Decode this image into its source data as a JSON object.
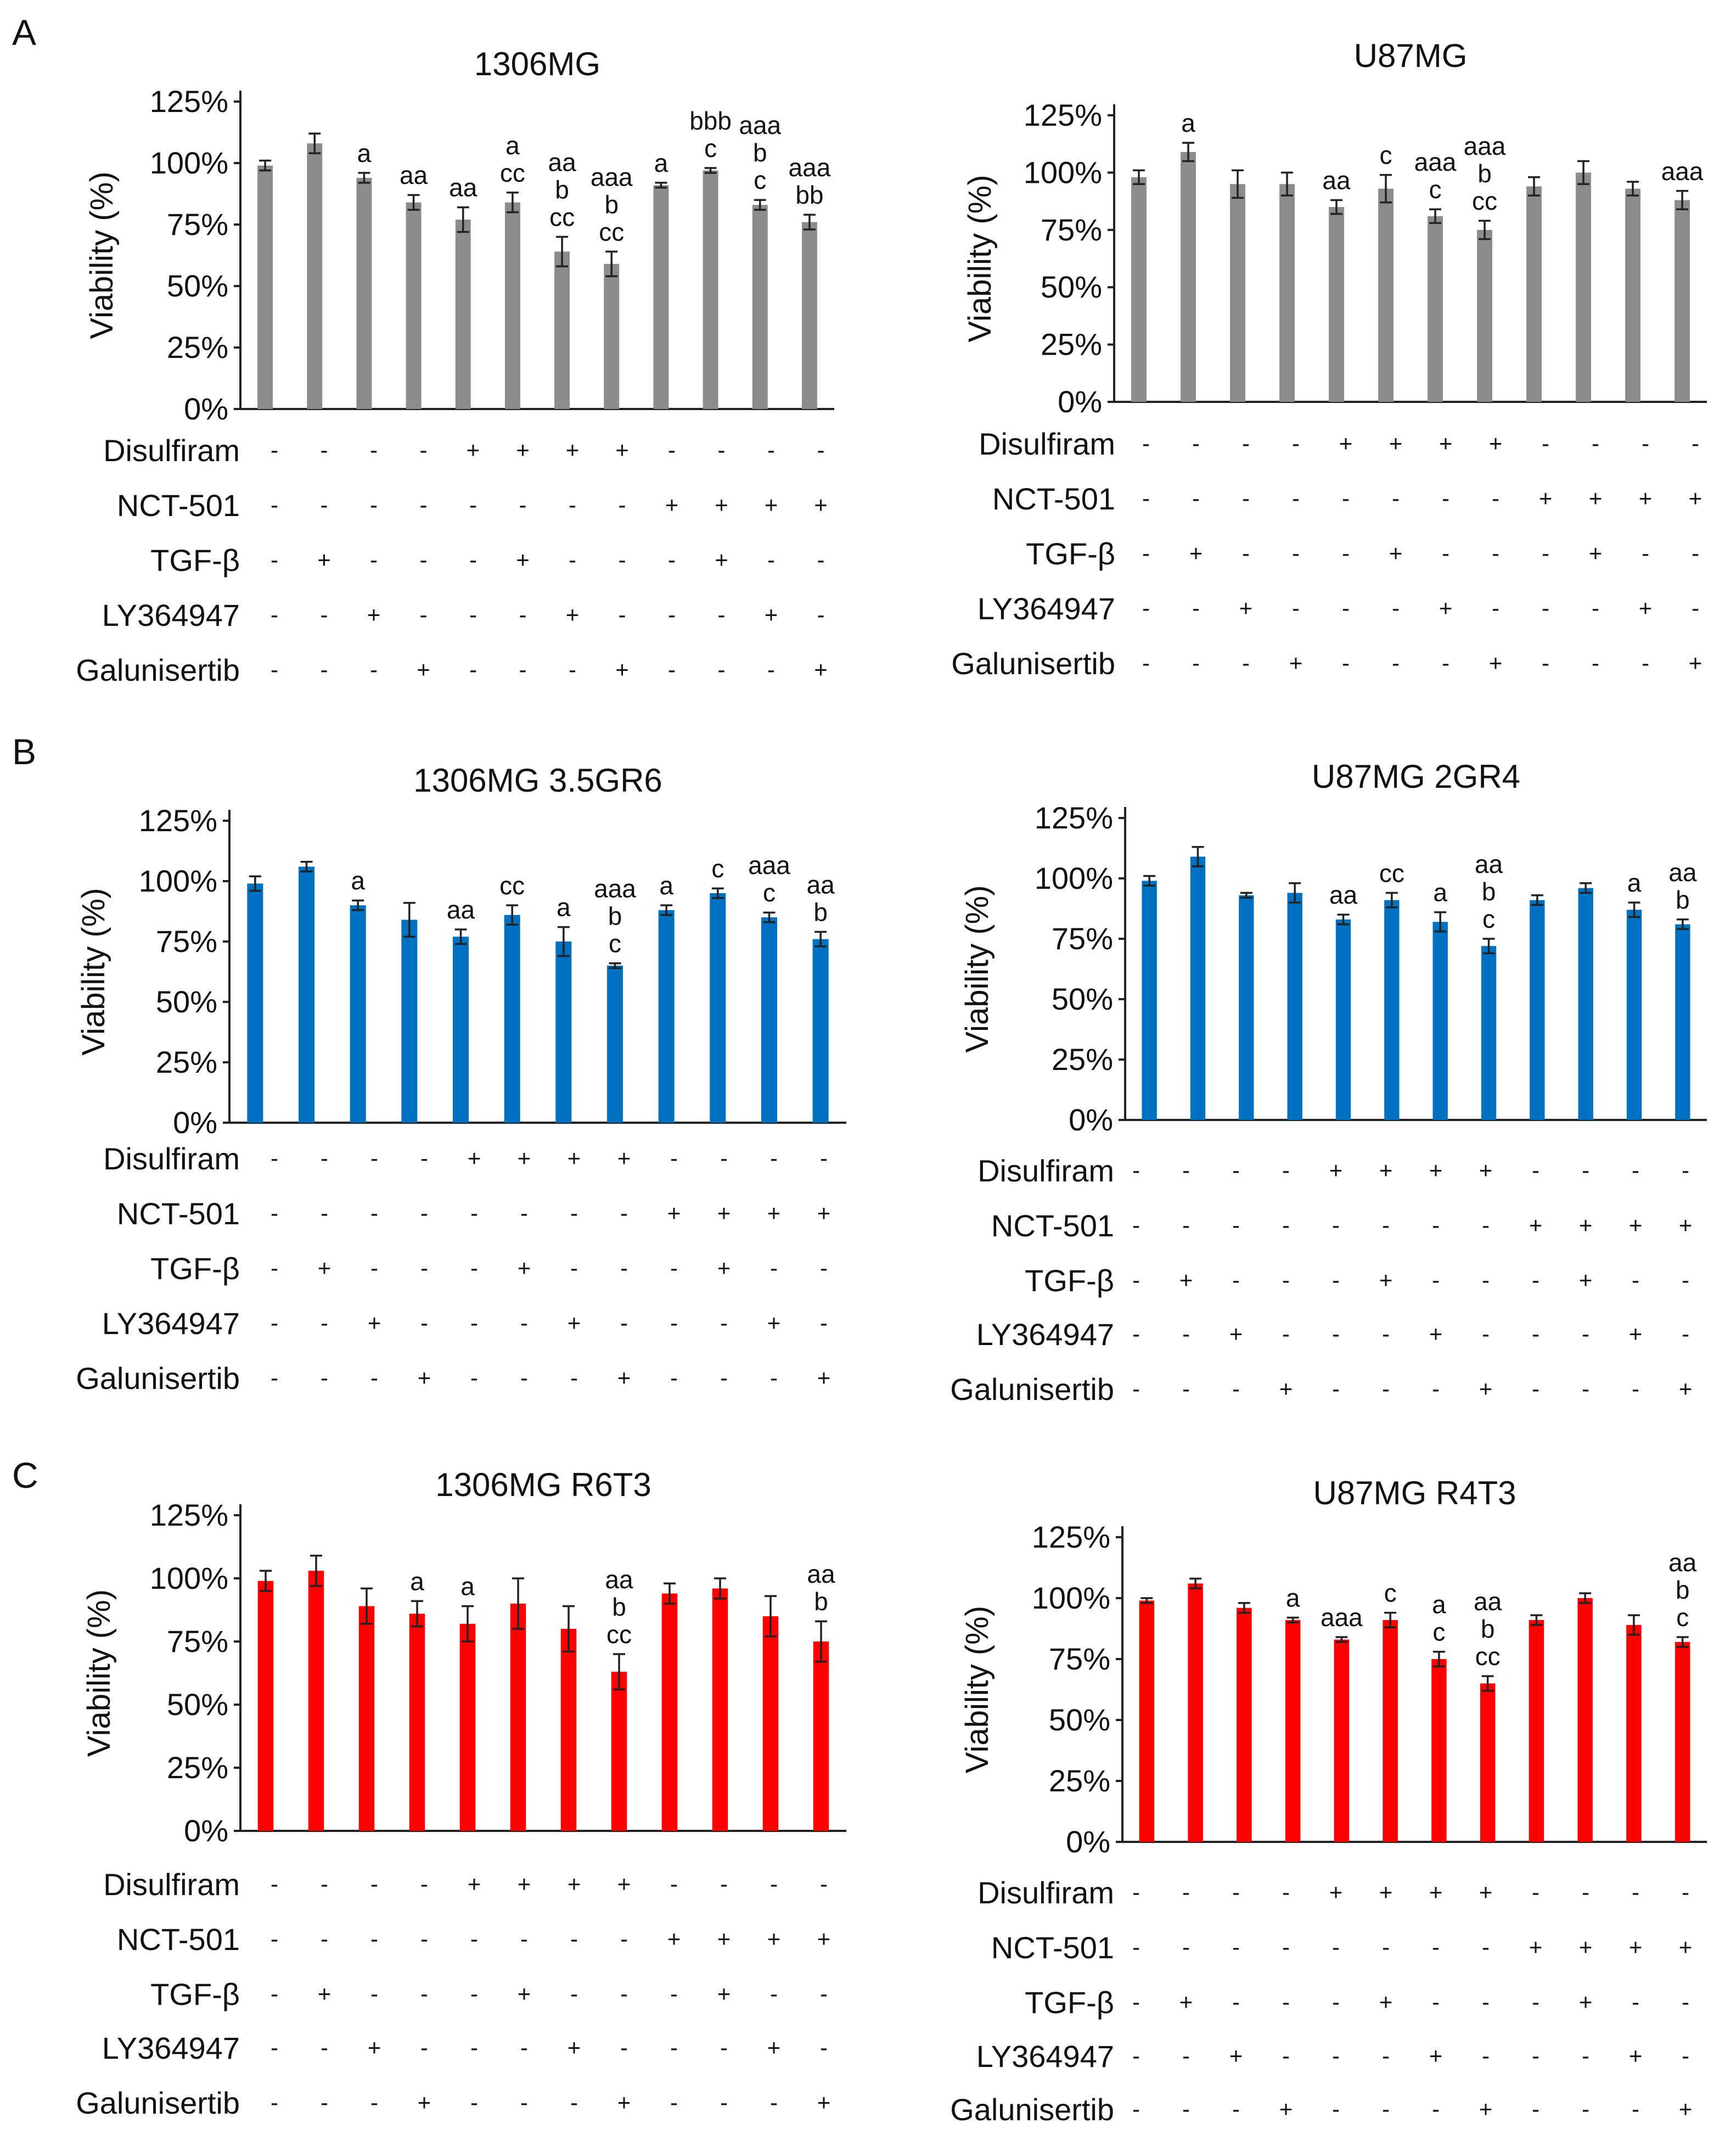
{
  "panel_labels": [
    "A",
    "B",
    "C"
  ],
  "row_labels": [
    "Disulfiram",
    "NCT-501",
    "TGF-β",
    "LY364947",
    "Galunisertib"
  ],
  "treatment_matrix": [
    [
      "-",
      "-",
      "-",
      "-",
      "+",
      "+",
      "+",
      "+",
      "-",
      "-",
      "-",
      "-"
    ],
    [
      "-",
      "-",
      "-",
      "-",
      "-",
      "-",
      "-",
      "-",
      "+",
      "+",
      "+",
      "+"
    ],
    [
      "-",
      "+",
      "-",
      "-",
      "-",
      "+",
      "-",
      "-",
      "-",
      "+",
      "-",
      "-"
    ],
    [
      "-",
      "-",
      "+",
      "-",
      "-",
      "-",
      "+",
      "-",
      "-",
      "-",
      "+",
      "-"
    ],
    [
      "-",
      "-",
      "-",
      "+",
      "-",
      "-",
      "-",
      "+",
      "-",
      "-",
      "-",
      "+"
    ]
  ],
  "colors": {
    "grey": "#8c8c8c",
    "blue": "#0070c0",
    "red": "#ff0000"
  },
  "chart_data": [
    {
      "type": "bar",
      "title": "1306MG",
      "ylabel": "Viability (%)",
      "ylim": [
        0,
        125
      ],
      "yticks": [
        "0%",
        "25%",
        "50%",
        "75%",
        "100%",
        "125%"
      ],
      "color": "grey",
      "values": [
        99,
        108,
        94,
        84,
        77,
        84,
        64,
        59,
        91,
        97,
        83,
        76
      ],
      "errors": [
        2,
        4,
        2,
        3,
        5,
        4,
        6,
        5,
        1,
        1,
        2,
        3
      ],
      "significance": [
        "",
        "",
        "a",
        "aa",
        "aa",
        "a\ncc",
        "aa\nb\ncc",
        "aaa\nb\ncc",
        "a",
        "bbb\nc",
        "aaa\nb\nc",
        "aaa\nbb"
      ]
    },
    {
      "type": "bar",
      "title": "U87MG",
      "ylabel": "Viability (%)",
      "ylim": [
        0,
        125
      ],
      "yticks": [
        "0%",
        "25%",
        "50%",
        "75%",
        "100%",
        "125%"
      ],
      "color": "grey",
      "values": [
        98,
        109,
        95,
        95,
        85,
        93,
        81,
        75,
        94,
        100,
        93,
        88
      ],
      "errors": [
        3,
        4,
        6,
        5,
        3,
        6,
        3,
        4,
        4,
        5,
        3,
        4
      ],
      "significance": [
        "",
        "a",
        "",
        "",
        "aa",
        "c",
        "aaa\nc",
        "aaa\nb\ncc",
        "",
        "",
        "",
        "aaa"
      ]
    },
    {
      "type": "bar",
      "title": "1306MG 3.5GR6",
      "ylabel": "Viability (%)",
      "ylim": [
        0,
        125
      ],
      "yticks": [
        "0%",
        "25%",
        "50%",
        "75%",
        "100%",
        "125%"
      ],
      "color": "blue",
      "values": [
        99,
        106,
        90,
        84,
        77,
        86,
        75,
        65,
        88,
        95,
        85,
        76
      ],
      "errors": [
        3,
        2,
        2,
        7,
        3,
        4,
        6,
        1,
        2,
        2,
        2,
        3
      ],
      "significance": [
        "",
        "",
        "a",
        "",
        "aa",
        "cc",
        "a",
        "aaa\nb\nc",
        "a",
        "c",
        "aaa\nc",
        "aa\nb"
      ]
    },
    {
      "type": "bar",
      "title": "U87MG 2GR4",
      "ylabel": "Viability (%)",
      "ylim": [
        0,
        125
      ],
      "yticks": [
        "0%",
        "25%",
        "50%",
        "75%",
        "100%",
        "125%"
      ],
      "color": "blue",
      "values": [
        99,
        109,
        93,
        94,
        83,
        91,
        82,
        72,
        91,
        96,
        87,
        81
      ],
      "errors": [
        2,
        4,
        1,
        4,
        2,
        3,
        4,
        3,
        2,
        2,
        3,
        2
      ],
      "significance": [
        "",
        "",
        "",
        "",
        "aa",
        "cc",
        "a",
        "aa\nb\nc",
        "",
        "",
        "a",
        "aa\nb"
      ]
    },
    {
      "type": "bar",
      "title": "1306MG R6T3",
      "ylabel": "Viability (%)",
      "ylim": [
        0,
        125
      ],
      "yticks": [
        "0%",
        "25%",
        "50%",
        "75%",
        "100%",
        "125%"
      ],
      "color": "red",
      "values": [
        99,
        103,
        89,
        86,
        82,
        90,
        80,
        63,
        94,
        96,
        85,
        75
      ],
      "errors": [
        4,
        6,
        7,
        5,
        7,
        10,
        9,
        7,
        4,
        4,
        8,
        8
      ],
      "significance": [
        "",
        "",
        "",
        "a",
        "a",
        "",
        "",
        "aa\nb\ncc",
        "",
        "",
        "",
        "aa\nb"
      ]
    },
    {
      "type": "bar",
      "title": "U87MG R4T3",
      "ylabel": "Viability (%)",
      "ylim": [
        0,
        125
      ],
      "yticks": [
        "0%",
        "25%",
        "50%",
        "75%",
        "100%",
        "125%"
      ],
      "color": "red",
      "values": [
        99,
        106,
        96,
        91,
        83,
        91,
        75,
        65,
        91,
        100,
        89,
        82
      ],
      "errors": [
        1,
        2,
        2,
        1,
        1,
        3,
        3,
        3,
        2,
        2,
        4,
        2
      ],
      "significance": [
        "",
        "",
        "",
        "a",
        "aaa",
        "c",
        "a\nc",
        "aa\nb\ncc",
        "",
        "",
        "",
        "aa\nb\nc"
      ]
    }
  ]
}
